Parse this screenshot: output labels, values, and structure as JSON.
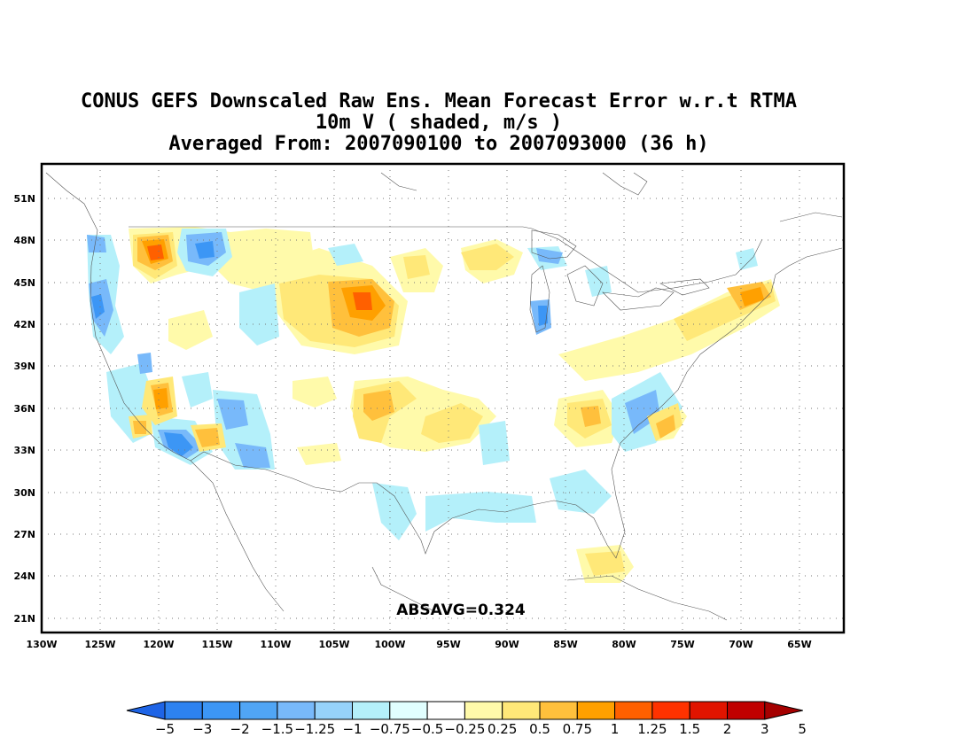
{
  "title": {
    "line1": "CONUS GEFS Downscaled Raw Ens. Mean Forecast Error w.r.t RTMA",
    "line2": "10m V ( shaded, m/s )",
    "line3": "Averaged From: 2007090100 to 2007093000 (36 h)"
  },
  "annotation": "ABSAVG=0.324",
  "lat_ticks": [
    "51N",
    "48N",
    "45N",
    "42N",
    "39N",
    "36N",
    "33N",
    "30N",
    "27N",
    "24N",
    "21N"
  ],
  "lon_ticks": [
    "130W",
    "125W",
    "120W",
    "115W",
    "110W",
    "105W",
    "100W",
    "95W",
    "90W",
    "85W",
    "80W",
    "75W",
    "70W",
    "65W"
  ],
  "colorbar": {
    "colors": [
      "#1e64e6",
      "#2d82f0",
      "#3c96f5",
      "#50a5f5",
      "#78b9fa",
      "#96d2fa",
      "#b4f0fa",
      "#e1ffff",
      "#ffffff",
      "#fffaaa",
      "#ffe878",
      "#ffc03c",
      "#ffa000",
      "#ff6000",
      "#ff3200",
      "#e11400",
      "#c00000",
      "#a50000"
    ],
    "labels": [
      "−5",
      "−3",
      "−2",
      "−1.5",
      "−1.25",
      "−1",
      "−0.75",
      "−0.5",
      "−0.25",
      "0.25",
      "0.5",
      "0.75",
      "1",
      "1.25",
      "1.5",
      "2",
      "3",
      "5"
    ]
  }
}
